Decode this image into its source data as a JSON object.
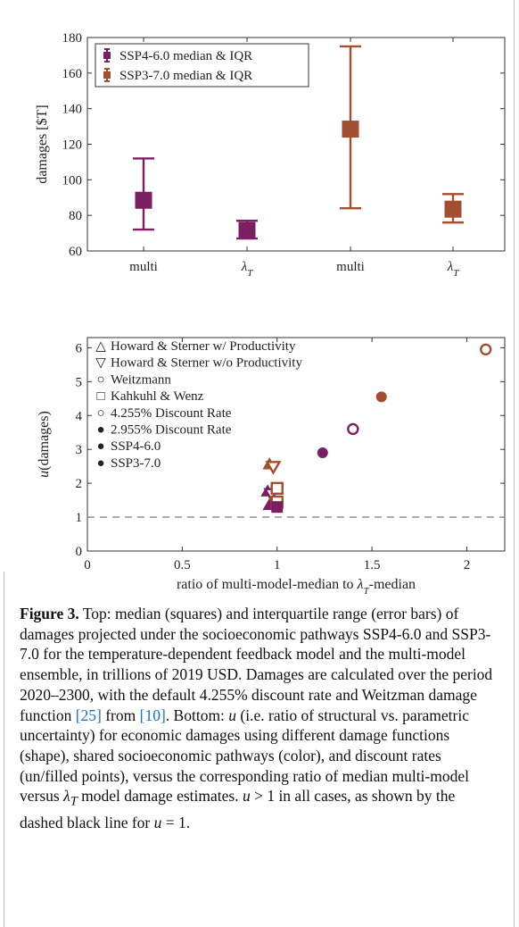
{
  "colors": {
    "ssp4": "#7a1f63",
    "ssp3": "#a34e2f",
    "axis": "#333333",
    "dashed_line": "#888888",
    "link": "#1a73c7"
  },
  "chart_data": [
    {
      "type": "scatter",
      "title": "",
      "ylabel": "damages [$T]",
      "xlabel": "",
      "ylim": [
        60,
        180
      ],
      "yticks": [
        60,
        80,
        100,
        120,
        140,
        160,
        180
      ],
      "categories": [
        "multi",
        "λT",
        "multi",
        "λT"
      ],
      "grid": false,
      "legend_position": "top-left",
      "series": [
        {
          "name": "SSP4-6.0 median & IQR",
          "color": "#7a1f63",
          "points": [
            {
              "category": "multi",
              "median": 88.5,
              "q1": 72,
              "q3": 112
            },
            {
              "category": "λT",
              "median": 71.5,
              "q1": 67,
              "q3": 77
            }
          ]
        },
        {
          "name": "SSP3-7.0 median & IQR",
          "color": "#a34e2f",
          "points": [
            {
              "category": "multi",
              "median": 128.5,
              "q1": 84,
              "q3": 175
            },
            {
              "category": "λT",
              "median": 83.5,
              "q1": 76,
              "q3": 92
            }
          ]
        }
      ]
    },
    {
      "type": "scatter",
      "title": "",
      "xlabel": "ratio of multi-model-median to λT-median",
      "ylabel": "u(damages)",
      "xlim": [
        0,
        2.2
      ],
      "ylim": [
        0,
        6.3
      ],
      "xticks": [
        0,
        0.5,
        1,
        1.5,
        2
      ],
      "xtick_labels": [
        "0",
        "0.5",
        "1",
        "1.5",
        "2"
      ],
      "yticks": [
        0,
        1,
        2,
        3,
        4,
        5,
        6
      ],
      "grid": false,
      "legend_position": "top-left",
      "reference_line": {
        "y": 1,
        "style": "dashed"
      },
      "legend": [
        {
          "symbol": "△",
          "label": "Howard & Sterner w/ Productivity"
        },
        {
          "symbol": "▽",
          "label": "Howard & Sterner w/o Productivity"
        },
        {
          "symbol": "○",
          "label": "Weitzmann"
        },
        {
          "symbol": "□",
          "label": "Kahkuhl & Wenz"
        },
        {
          "symbol": "○",
          "label": "4.255% Discount Rate"
        },
        {
          "symbol": "●",
          "label": "2.955% Discount Rate"
        },
        {
          "symbol": "●",
          "label": "SSP4-6.0",
          "color": "#7a1f63"
        },
        {
          "symbol": "●",
          "label": "SSP3-7.0",
          "color": "#a34e2f"
        }
      ],
      "points": [
        {
          "x": 0.96,
          "y": 2.55,
          "shape": "triangle-up",
          "ssp": "SSP3-7.0",
          "filled": true
        },
        {
          "x": 0.98,
          "y": 2.5,
          "shape": "triangle-down",
          "ssp": "SSP3-7.0",
          "filled": false
        },
        {
          "x": 0.95,
          "y": 1.75,
          "shape": "triangle-up",
          "ssp": "SSP4-6.0",
          "filled": true
        },
        {
          "x": 0.97,
          "y": 1.7,
          "shape": "triangle-down",
          "ssp": "SSP4-6.0",
          "filled": false
        },
        {
          "x": 0.96,
          "y": 1.35,
          "shape": "triangle-up",
          "ssp": "SSP4-6.0",
          "filled": true
        },
        {
          "x": 0.99,
          "y": 1.45,
          "shape": "triangle-down",
          "ssp": "SSP3-7.0",
          "filled": true
        },
        {
          "x": 1.0,
          "y": 1.85,
          "shape": "square",
          "ssp": "SSP3-7.0",
          "filled": false
        },
        {
          "x": 1.0,
          "y": 1.45,
          "shape": "square",
          "ssp": "SSP3-7.0",
          "filled": false
        },
        {
          "x": 1.0,
          "y": 1.3,
          "shape": "square",
          "ssp": "SSP4-6.0",
          "filled": true
        },
        {
          "x": 1.24,
          "y": 2.9,
          "shape": "circle",
          "ssp": "SSP4-6.0",
          "filled": true
        },
        {
          "x": 1.4,
          "y": 3.6,
          "shape": "circle",
          "ssp": "SSP4-6.0",
          "filled": false
        },
        {
          "x": 1.55,
          "y": 4.55,
          "shape": "circle",
          "ssp": "SSP3-7.0",
          "filled": true
        },
        {
          "x": 2.1,
          "y": 5.95,
          "shape": "circle",
          "ssp": "SSP3-7.0",
          "filled": false
        }
      ]
    }
  ],
  "caption": {
    "label": "Figure 3.",
    "part1": " Top: median (squares) and interquartile range (error bars) of damages projected under the socioeconomic pathways SSP4-6.0 and SSP3-7.0 for the temperature-dependent feedback model and the multi-model ensemble, in trillions of 2019 USD. Damages are calculated over the period 2020–2300, with the default 4.255% discount rate and Weitzman damage function ",
    "ref1": "[25]",
    "part2": " from ",
    "ref2": "[10]",
    "part3": ". Bottom: ",
    "u1": "u",
    "part4": " (i.e. ratio of structural vs. parametric uncertainty) for economic damages using different damage functions (shape), shared socioeconomic pathways (color), and discount rates (un/filled points), versus the corresponding ratio of median multi-model versus ",
    "lambda": "λ",
    "lambda_sub": "T",
    "part5": " model damage estimates. ",
    "u2": "u",
    "part6": " > 1 in all cases, as shown by the dashed black line for ",
    "u3": "u",
    "part7": " = 1."
  }
}
